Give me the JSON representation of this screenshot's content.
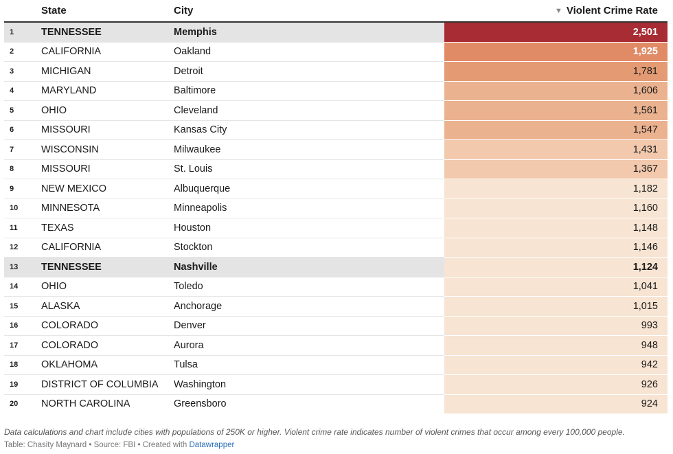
{
  "chart_data": {
    "type": "table",
    "columns": [
      "",
      "State",
      "City",
      "Violent Crime Rate"
    ],
    "sorted_column": "Violent Crime Rate",
    "sort_direction": "descending",
    "highlight_state": "TENNESSEE",
    "color_scale": [
      "#f7e4d2",
      "#f2c9ad",
      "#ebb290",
      "#e49b73",
      "#e08a66",
      "#a72c33"
    ],
    "rows": [
      {
        "rank": "1",
        "state": "TENNESSEE",
        "city": "Memphis",
        "rate": 2501,
        "rate_label": "2,501"
      },
      {
        "rank": "2",
        "state": "CALIFORNIA",
        "city": "Oakland",
        "rate": 1925,
        "rate_label": "1,925"
      },
      {
        "rank": "3",
        "state": "MICHIGAN",
        "city": "Detroit",
        "rate": 1781,
        "rate_label": "1,781"
      },
      {
        "rank": "4",
        "state": "MARYLAND",
        "city": "Baltimore",
        "rate": 1606,
        "rate_label": "1,606"
      },
      {
        "rank": "5",
        "state": "OHIO",
        "city": "Cleveland",
        "rate": 1561,
        "rate_label": "1,561"
      },
      {
        "rank": "6",
        "state": "MISSOURI",
        "city": "Kansas City",
        "rate": 1547,
        "rate_label": "1,547"
      },
      {
        "rank": "7",
        "state": "WISCONSIN",
        "city": "Milwaukee",
        "rate": 1431,
        "rate_label": "1,431"
      },
      {
        "rank": "8",
        "state": "MISSOURI",
        "city": "St. Louis",
        "rate": 1367,
        "rate_label": "1,367"
      },
      {
        "rank": "9",
        "state": "NEW MEXICO",
        "city": "Albuquerque",
        "rate": 1182,
        "rate_label": "1,182"
      },
      {
        "rank": "10",
        "state": "MINNESOTA",
        "city": "Minneapolis",
        "rate": 1160,
        "rate_label": "1,160"
      },
      {
        "rank": "11",
        "state": "TEXAS",
        "city": "Houston",
        "rate": 1148,
        "rate_label": "1,148"
      },
      {
        "rank": "12",
        "state": "CALIFORNIA",
        "city": "Stockton",
        "rate": 1146,
        "rate_label": "1,146"
      },
      {
        "rank": "13",
        "state": "TENNESSEE",
        "city": "Nashville",
        "rate": 1124,
        "rate_label": "1,124"
      },
      {
        "rank": "14",
        "state": "OHIO",
        "city": "Toledo",
        "rate": 1041,
        "rate_label": "1,041"
      },
      {
        "rank": "15",
        "state": "ALASKA",
        "city": "Anchorage",
        "rate": 1015,
        "rate_label": "1,015"
      },
      {
        "rank": "16",
        "state": "COLORADO",
        "city": "Denver",
        "rate": 993,
        "rate_label": "993"
      },
      {
        "rank": "17",
        "state": "COLORADO",
        "city": "Aurora",
        "rate": 948,
        "rate_label": "948"
      },
      {
        "rank": "18",
        "state": "OKLAHOMA",
        "city": "Tulsa",
        "rate": 942,
        "rate_label": "942"
      },
      {
        "rank": "19",
        "state": "DISTRICT OF COLUMBIA",
        "city": "Washington",
        "rate": 926,
        "rate_label": "926"
      },
      {
        "rank": "20",
        "state": "NORTH CAROLINA",
        "city": "Greensboro",
        "rate": 924,
        "rate_label": "924"
      }
    ],
    "notes": "Data calculations and chart include cities with populations of 250K or higher. Violent crime rate indicates number of violent crimes that occur among every 100,000 people.",
    "credit_prefix": "Table: Chasity Maynard • Source: FBI • Created with ",
    "credit_link": "Datawrapper"
  },
  "header": {
    "state_label": "State",
    "city_label": "City",
    "rate_label": "Violent Crime Rate",
    "sort_icon": "▼"
  }
}
